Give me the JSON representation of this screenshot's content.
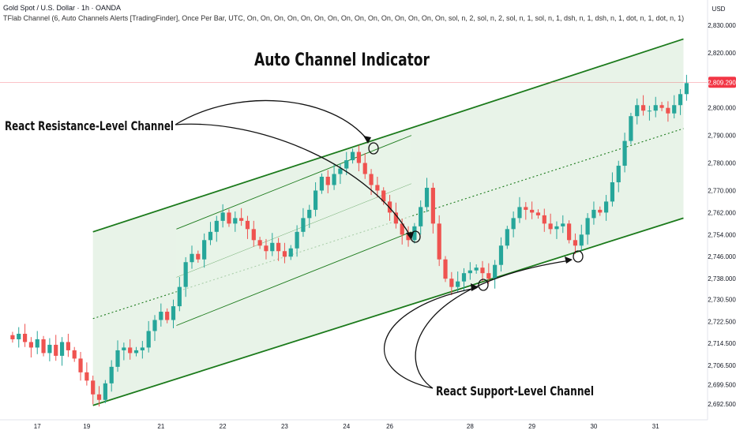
{
  "header": {
    "symbol_line": "Gold Spot / U.S. Dollar · 1h · OANDA",
    "indicator_line": "TFlab Channel (6, Auto Channels Alerts [TradingFinder], Once Per Bar, UTC, On, On, On, On, On, On, On, On, On, On, On, On, On, On, On, sol, n, 2, sol, n, 2, sol, n, 1, sol, n, 1, dsh, n, 1, dsh, n, 1, dot, n, 1, dot, n, 1)"
  },
  "currency": "USD",
  "colors": {
    "bull": "#26a69a",
    "bear": "#ef5350",
    "channel_line": "#1b7a1b",
    "channel_fill": "#e8f3e8",
    "price_badge": "#f23645"
  },
  "annotations": {
    "main_title": "Auto Channel Indicator",
    "resistance_label": "React Resistance-Level Channel",
    "support_label": "React Support-Level Channel"
  },
  "chart_data": {
    "type": "candlestick",
    "title": "Auto Channel Indicator",
    "y_ticks": [
      "2,830.000",
      "2,820.000",
      "2,809.290",
      "2,800.000",
      "2,790.000",
      "2,780.000",
      "2,770.000",
      "2,762.000",
      "2,754.000",
      "2,746.000",
      "2,738.000",
      "2,730.500",
      "2,722.500",
      "2,714.500",
      "2,706.500",
      "2,699.500",
      "2,692.500"
    ],
    "y_tick_values": [
      2830,
      2820,
      2809.29,
      2800,
      2790,
      2780,
      2770,
      2762,
      2754,
      2746,
      2738,
      2730.5,
      2722.5,
      2714.5,
      2706.5,
      2699.5,
      2692.5
    ],
    "current_price": "2,809.290",
    "current_price_value": 2809.29,
    "x_ticks": [
      "17",
      "19",
      "21",
      "22",
      "23",
      "24",
      "26",
      "28",
      "29",
      "30",
      "31"
    ],
    "x_tick_bars": [
      4,
      12,
      24,
      34,
      44,
      54,
      61,
      74,
      84,
      94,
      104
    ],
    "bars": 110,
    "closes": [
      2716,
      2718,
      2715,
      2713,
      2716,
      2711,
      2714,
      2710,
      2715,
      2712,
      2709,
      2704,
      2701,
      2696,
      2694,
      2700,
      2706,
      2712,
      2713,
      2711,
      2712,
      2713,
      2719,
      2723,
      2726,
      2723,
      2728,
      2735,
      2744,
      2747,
      2745,
      2752,
      2755,
      2759,
      2762,
      2758,
      2760,
      2759,
      2756,
      2752,
      2750,
      2748,
      2751,
      2748,
      2746,
      2749,
      2755,
      2760,
      2763,
      2770,
      2775,
      2772,
      2776,
      2778,
      2781,
      2784,
      2780,
      2776,
      2772,
      2770,
      2766,
      2762,
      2758,
      2754,
      2752,
      2757,
      2764,
      2771,
      2758,
      2745,
      2738,
      2735,
      2737,
      2740,
      2741,
      2742,
      2740,
      2738,
      2743,
      2750,
      2756,
      2760,
      2764,
      2763,
      2762,
      2761,
      2758,
      2756,
      2757,
      2758,
      2752,
      2750,
      2754,
      2760,
      2763,
      2762,
      2766,
      2773,
      2779,
      2788,
      2797,
      2801,
      2799,
      2799,
      2801,
      2800,
      2798,
      2801,
      2805,
      2809
    ],
    "channels": [
      {
        "name": "main",
        "start_bar": 13.5,
        "end_bar": 109,
        "upper": [
          2755,
          2825
        ],
        "lower": [
          2692,
          2760
        ],
        "mid": [
          2723.5,
          2792.5
        ]
      },
      {
        "name": "inner",
        "start_bar": 27,
        "end_bar": 65,
        "upper": [
          2756,
          2790
        ],
        "lower": [
          2721,
          2755
        ],
        "mid": [
          2738.5,
          2772.5
        ]
      }
    ]
  }
}
